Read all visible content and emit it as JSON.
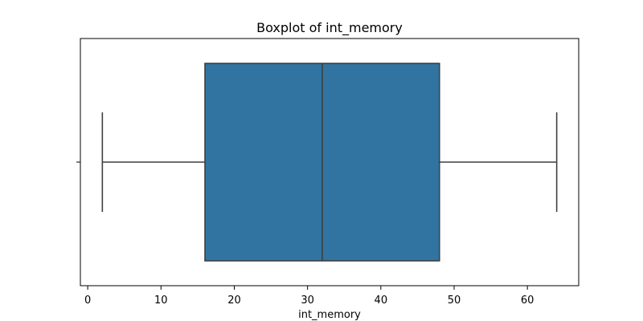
{
  "chart_data": {
    "type": "boxplot",
    "title": "Boxplot of int_memory",
    "xlabel": "int_memory",
    "ylabel": "",
    "xlim": [
      -1,
      67
    ],
    "x_ticks": [
      0,
      10,
      20,
      30,
      40,
      50,
      60
    ],
    "x_tick_labels": [
      "0",
      "10",
      "20",
      "30",
      "40",
      "50",
      "60"
    ],
    "grid": false,
    "orientation": "horizontal",
    "box": {
      "min": 2,
      "q1": 16,
      "median": 32,
      "q3": 48,
      "max": 64
    },
    "colors": {
      "box_fill": "#3274a1",
      "line": "#3f3f3f",
      "axis": "#000000"
    }
  }
}
